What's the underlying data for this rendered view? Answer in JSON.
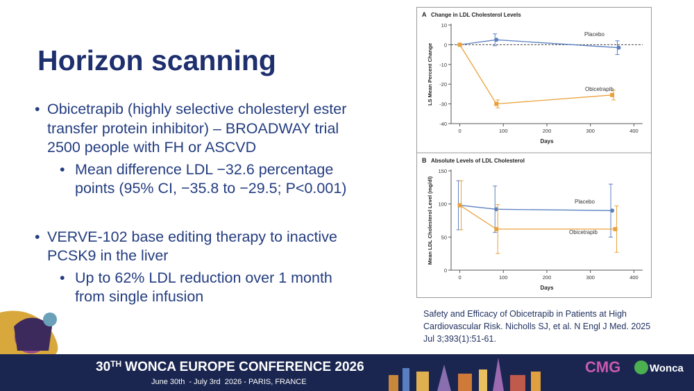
{
  "slide": {
    "title": "Horizon scanning",
    "bullets": [
      {
        "level": 1,
        "lines": [
          "Obicetrapib (highly selective cholesteryl ester",
          "transfer protein inhibitor) – BROADWAY trial",
          "2500 people with FH or ASCVD"
        ]
      },
      {
        "level": 2,
        "lines": [
          "Mean difference LDL −32.6 percentage",
          "points (95% CI, −35.8 to −29.5; P<0.001)"
        ]
      },
      {
        "level": 1,
        "lines": [
          "VERVE-102 base editing therapy to inactive",
          "PCSK9 in the liver"
        ]
      },
      {
        "level": 2,
        "lines": [
          "Up to 62% LDL reduction over 1 month",
          "from single infusion"
        ]
      }
    ],
    "citation": "Safety and Efficacy of Obicetrapib in Patients at High Cardiovascular Risk. Nicholls SJ, et al. N Engl J Med. 2025 Jul 3;393(1):51-61.",
    "figure": {
      "panels": [
        {
          "type": "line",
          "letter": "A",
          "title": "Change in LDL Cholesterol Levels",
          "x_label": "Days",
          "y_label": "LS Mean Percent Change",
          "xlim": [
            -20,
            420
          ],
          "xticks": [
            0,
            100,
            200,
            300,
            400
          ],
          "ylim": [
            -40,
            10
          ],
          "yticks": [
            -40,
            -30,
            -20,
            -10,
            0,
            10
          ],
          "reference_line": 0,
          "series": [
            {
              "name": "Placebo",
              "color": "#5b80c0",
              "marker": "circle",
              "x": [
                0,
                84,
                365
              ],
              "values": [
                0,
                2.5,
                -1.5
              ],
              "errors": [
                0,
                3,
                3.5
              ]
            },
            {
              "name": "Obicetrapib",
              "color": "#e9a23b",
              "marker": "square",
              "x": [
                0,
                84,
                350
              ],
              "values": [
                0,
                -30,
                -25.5
              ],
              "errors": [
                0,
                2,
                2.5
              ]
            }
          ]
        },
        {
          "type": "line",
          "letter": "B",
          "title": "Absolute Levels of LDL Cholesterol",
          "x_label": "Days",
          "y_label": "Mean LDL Cholesterol Level (mg/dl)",
          "xlim": [
            -20,
            420
          ],
          "xticks": [
            0,
            100,
            200,
            300,
            400
          ],
          "ylim": [
            0,
            150
          ],
          "yticks": [
            0,
            50,
            100,
            150
          ],
          "series": [
            {
              "name": "Placebo",
              "color": "#5b80c0",
              "marker": "circle",
              "x": [
                0,
                84,
                350
              ],
              "values": [
                98,
                92,
                90
              ],
              "errors": [
                37,
                35,
                40
              ]
            },
            {
              "name": "Obicetrapib",
              "color": "#e9a23b",
              "marker": "square",
              "x": [
                0,
                84,
                357
              ],
              "values": [
                98,
                62,
                62
              ],
              "errors": [
                37,
                37,
                35
              ]
            }
          ]
        }
      ]
    }
  },
  "footer": {
    "number": "30",
    "ordinal": "TH",
    "name": "WONCA EUROPE CONFERENCE 2026",
    "dates": "June 30th  - July 3rd  2026 - PARIS, FRANCE",
    "logo_left": "CMG",
    "logo_right": "Wonca"
  }
}
